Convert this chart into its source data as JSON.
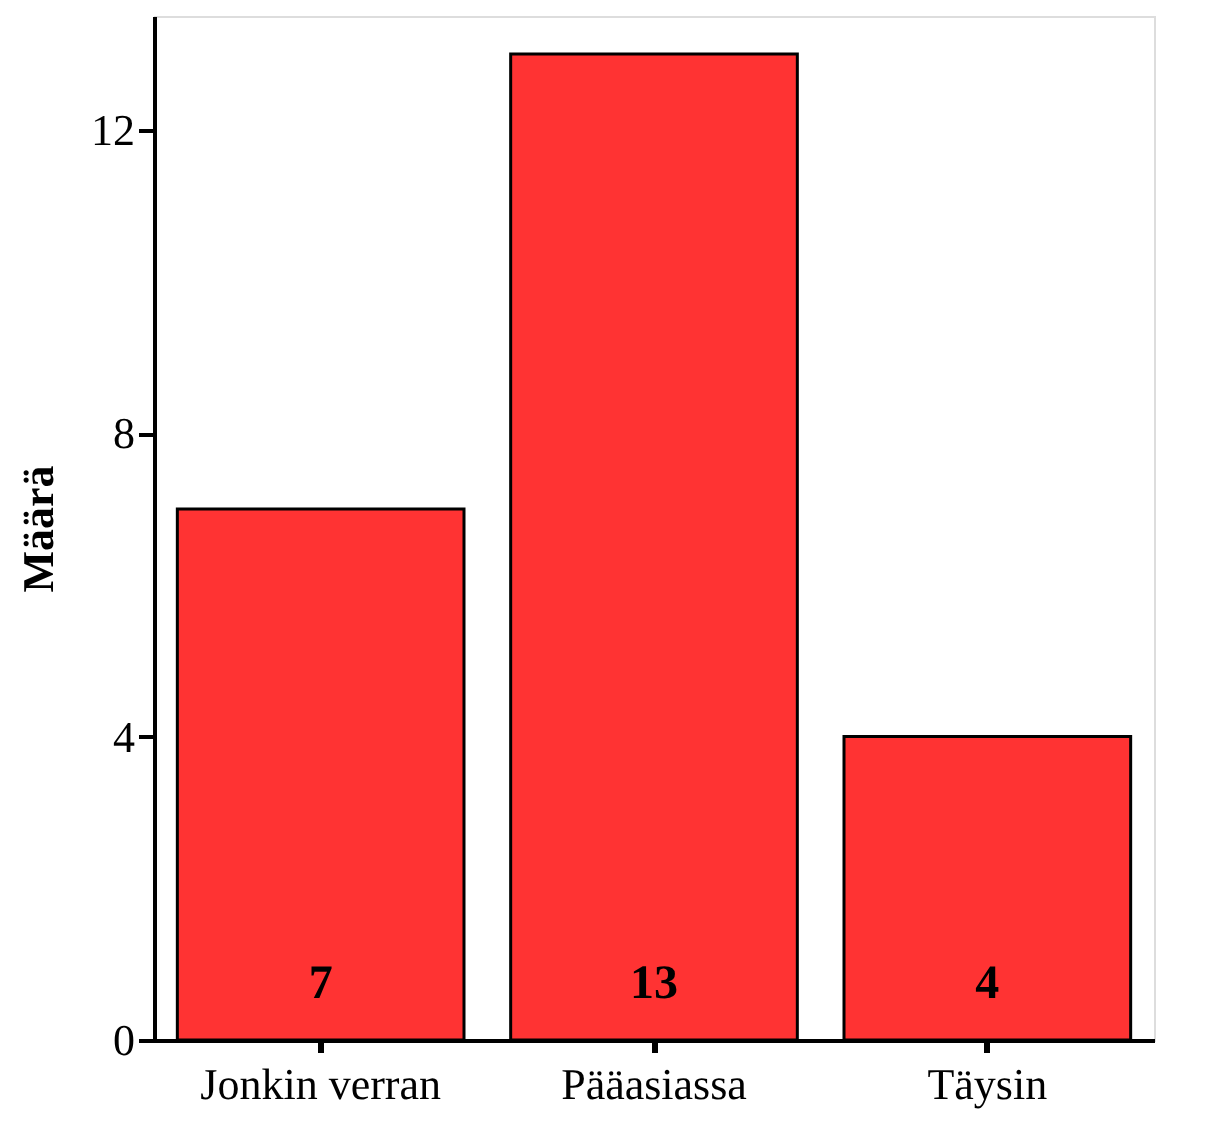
{
  "chart_data": {
    "type": "bar",
    "ylabel": "Määrä",
    "categories": [
      "Jonkin verran",
      "Pääasiassa",
      "Täysin"
    ],
    "values": [
      7,
      13,
      4
    ],
    "color": "#ff3333",
    "ylim": [
      0,
      13.5
    ],
    "yticks": [
      0,
      4,
      8,
      12
    ],
    "grid": false,
    "data_labels": true
  }
}
